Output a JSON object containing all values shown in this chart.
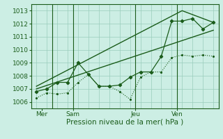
{
  "bg_color": "#cceee4",
  "grid_color": "#99ccbb",
  "line_color": "#1a5c1a",
  "title": "Pression niveau de la mer( hPa )",
  "ylim": [
    1005.5,
    1013.5
  ],
  "yticks": [
    1006,
    1007,
    1008,
    1009,
    1010,
    1011,
    1012,
    1013
  ],
  "day_labels": [
    "Mer",
    "Sam",
    "Jeu",
    "Ven"
  ],
  "day_positions": [
    0.5,
    3.5,
    9.5,
    13.5
  ],
  "vline_positions": [
    1.5,
    3.5,
    9.5,
    13.5
  ],
  "total_points": 18,
  "series1_dotted": {
    "x": [
      0,
      1,
      2,
      3,
      4,
      5,
      6,
      7,
      8,
      9,
      10,
      11,
      12,
      13,
      14,
      15,
      16,
      17
    ],
    "y": [
      1006.3,
      1006.7,
      1006.6,
      1006.7,
      1007.5,
      1008.1,
      1007.2,
      1007.2,
      1006.8,
      1006.2,
      1007.9,
      1008.3,
      1008.3,
      1009.4,
      1009.6,
      1009.5,
      1009.6,
      1009.5
    ]
  },
  "series2_solid_markers": {
    "x": [
      0,
      1,
      2,
      3,
      4,
      5,
      6,
      7,
      8,
      9,
      10,
      11,
      12,
      13,
      14,
      15,
      16,
      17
    ],
    "y": [
      1006.8,
      1007.0,
      1007.5,
      1007.5,
      1009.0,
      1008.1,
      1007.2,
      1007.2,
      1007.3,
      1007.9,
      1008.3,
      1008.3,
      1009.5,
      1012.2,
      1012.2,
      1012.4,
      1011.6,
      1012.1
    ]
  },
  "series3_lower_trend": {
    "x": [
      0,
      17
    ],
    "y": [
      1007.0,
      1011.5
    ]
  },
  "series4_upper_trend": {
    "x": [
      0,
      14,
      17
    ],
    "y": [
      1007.2,
      1013.0,
      1012.1
    ]
  }
}
